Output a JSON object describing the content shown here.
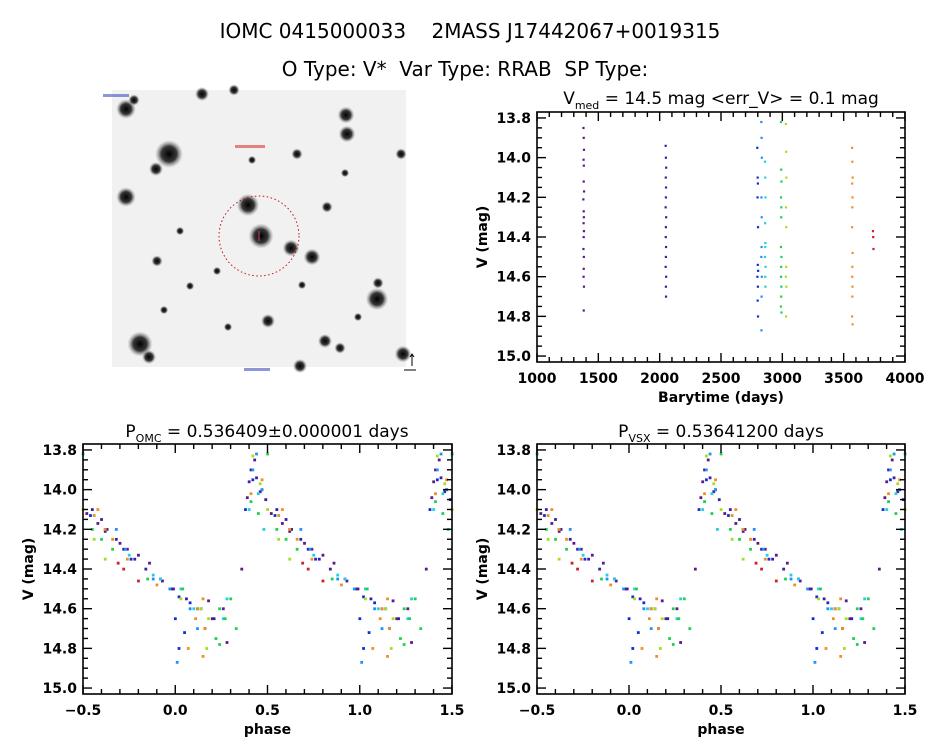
{
  "header": {
    "line1": "IOMC 0415000033    2MASS J17442067+0019315",
    "line2": "O Type: V*  Var Type: RRAB  SP Type:"
  },
  "colors": {
    "epochs": [
      "#5a1a8a",
      "#3a20a0",
      "#1030d0",
      "#1e90ff",
      "#20d0e0",
      "#20d050",
      "#a0e020",
      "#f09020",
      "#d02020"
    ],
    "axis": "#000000",
    "aperture_circle": "#cc1010"
  },
  "chart_data": [
    {
      "type": "image",
      "description_label": "",
      "marker": "aperture-circle"
    },
    {
      "type": "scatter",
      "title_main": "V",
      "title_sub": "med",
      "title_rest": " = 14.5 mag <err_V> = 0.1 mag",
      "xlabel": "Barytime (days)",
      "ylabel": "V (mag)",
      "xlim": [
        1000,
        4000
      ],
      "ylim": [
        15.03,
        13.77
      ],
      "xticks": [
        "1000",
        "1500",
        "2000",
        "2500",
        "3000",
        "3500",
        "4000"
      ],
      "yticks": [
        "13.8",
        "14.0",
        "14.2",
        "14.4",
        "14.6",
        "14.8",
        "15.0"
      ],
      "y_inverted": true
    },
    {
      "type": "scatter",
      "title_main": "P",
      "title_sub": "OMC",
      "title_rest": " = 0.536409±0.000001 days",
      "xlabel": "phase",
      "ylabel": "V (mag)",
      "xlim": [
        -0.5,
        1.5
      ],
      "ylim": [
        15.03,
        13.77
      ],
      "xticks": [
        "−0.5",
        "0.0",
        "0.5",
        "1.0",
        "1.5"
      ],
      "yticks": [
        "13.8",
        "14.0",
        "14.2",
        "14.4",
        "14.6",
        "14.8",
        "15.0"
      ],
      "y_inverted": true
    },
    {
      "type": "scatter",
      "title_main": "P",
      "title_sub": "VSX",
      "title_rest": " = 0.53641200 days",
      "xlabel": "phase",
      "ylabel": "V (mag)",
      "xlim": [
        -0.5,
        1.5
      ],
      "ylim": [
        15.03,
        13.77
      ],
      "xticks": [
        "−0.5",
        "0.0",
        "0.5",
        "1.0",
        "1.5"
      ],
      "yticks": [
        "13.8",
        "14.0",
        "14.2",
        "14.4",
        "14.6",
        "14.8",
        "15.0"
      ],
      "y_inverted": true
    }
  ],
  "observations": {
    "fields": [
      "barytime",
      "phase",
      "V",
      "epoch_color_index"
    ],
    "points": [
      [
        1378,
        0.43,
        13.85,
        0
      ],
      [
        1380,
        0.41,
        13.9,
        0
      ],
      [
        1382,
        0.4,
        13.96,
        0
      ],
      [
        1379,
        0.46,
        14.01,
        0
      ],
      [
        1381,
        0.39,
        14.04,
        0
      ],
      [
        1380,
        0.52,
        14.12,
        0
      ],
      [
        1383,
        0.58,
        14.17,
        0
      ],
      [
        1377,
        0.62,
        14.21,
        0
      ],
      [
        1380,
        0.7,
        14.27,
        0
      ],
      [
        1381,
        0.74,
        14.3,
        0
      ],
      [
        1379,
        0.8,
        14.33,
        0
      ],
      [
        1382,
        0.86,
        14.37,
        0
      ],
      [
        1380,
        0.36,
        14.4,
        0
      ],
      [
        1378,
        0.93,
        14.46,
        0
      ],
      [
        1381,
        0.99,
        14.5,
        0
      ],
      [
        1380,
        0.18,
        14.56,
        0
      ],
      [
        1379,
        0.26,
        14.6,
        0
      ],
      [
        1382,
        0.2,
        14.65,
        0
      ],
      [
        1380,
        0.28,
        14.77,
        0
      ],
      [
        2048,
        0.44,
        13.94,
        1
      ],
      [
        2050,
        0.47,
        14.0,
        1
      ],
      [
        2052,
        0.49,
        14.05,
        1
      ],
      [
        2049,
        0.55,
        14.1,
        1
      ],
      [
        2051,
        0.6,
        14.15,
        1
      ],
      [
        2050,
        0.63,
        14.2,
        1
      ],
      [
        2048,
        0.68,
        14.25,
        1
      ],
      [
        2052,
        0.72,
        14.3,
        1
      ],
      [
        2050,
        0.78,
        14.35,
        1
      ],
      [
        2049,
        0.84,
        14.4,
        1
      ],
      [
        2051,
        0.92,
        14.45,
        1
      ],
      [
        2050,
        0.98,
        14.5,
        1
      ],
      [
        2048,
        0.06,
        14.55,
        1
      ],
      [
        2052,
        0.12,
        14.6,
        1
      ],
      [
        2050,
        0.21,
        14.65,
        1
      ],
      [
        2051,
        0.16,
        14.7,
        1
      ],
      [
        2795,
        0.42,
        13.95,
        2
      ],
      [
        2798,
        0.38,
        14.1,
        2
      ],
      [
        2800,
        0.54,
        14.13,
        2
      ],
      [
        2797,
        0.62,
        14.2,
        2
      ],
      [
        2801,
        0.76,
        14.35,
        2
      ],
      [
        2799,
        0.02,
        14.54,
        2
      ],
      [
        2802,
        0.08,
        14.57,
        2
      ],
      [
        2796,
        0.14,
        14.6,
        2
      ],
      [
        2800,
        0.0,
        14.65,
        2
      ],
      [
        2798,
        0.05,
        14.72,
        2
      ],
      [
        2801,
        0.02,
        14.8,
        2
      ],
      [
        2828,
        0.44,
        13.82,
        3
      ],
      [
        2830,
        0.42,
        13.9,
        3
      ],
      [
        2832,
        0.47,
        14.0,
        3
      ],
      [
        2829,
        0.68,
        14.2,
        3
      ],
      [
        2831,
        0.73,
        14.3,
        3
      ],
      [
        2830,
        0.88,
        14.45,
        3
      ],
      [
        2828,
        0.97,
        14.5,
        3
      ],
      [
        2832,
        0.08,
        14.6,
        3
      ],
      [
        2830,
        0.12,
        14.7,
        3
      ],
      [
        2829,
        0.01,
        14.87,
        3
      ],
      [
        2858,
        0.45,
        14.02,
        4
      ],
      [
        2860,
        0.4,
        14.1,
        4
      ],
      [
        2862,
        0.48,
        14.2,
        4
      ],
      [
        2859,
        0.75,
        14.33,
        4
      ],
      [
        2861,
        0.88,
        14.43,
        4
      ],
      [
        2860,
        0.92,
        14.45,
        4
      ],
      [
        2858,
        0.03,
        14.5,
        4
      ],
      [
        2862,
        0.28,
        14.55,
        4
      ],
      [
        2860,
        0.1,
        14.6,
        4
      ],
      [
        2861,
        0.26,
        14.65,
        4
      ],
      [
        2988,
        0.5,
        13.82,
        5
      ],
      [
        2990,
        0.41,
        14.06,
        5
      ],
      [
        2992,
        0.45,
        14.12,
        5
      ],
      [
        2989,
        0.55,
        14.2,
        5
      ],
      [
        2991,
        0.6,
        14.25,
        5
      ],
      [
        2990,
        0.66,
        14.3,
        5
      ],
      [
        2988,
        0.85,
        14.45,
        5
      ],
      [
        2992,
        0.04,
        14.5,
        5
      ],
      [
        2990,
        0.3,
        14.55,
        5
      ],
      [
        2989,
        0.24,
        14.6,
        5
      ],
      [
        2991,
        0.27,
        14.65,
        5
      ],
      [
        2990,
        0.33,
        14.7,
        5
      ],
      [
        2988,
        0.22,
        14.75,
        5
      ],
      [
        2992,
        0.24,
        14.78,
        5
      ],
      [
        3028,
        0.42,
        13.83,
        6
      ],
      [
        3030,
        0.46,
        13.97,
        6
      ],
      [
        3032,
        0.5,
        14.1,
        6
      ],
      [
        3029,
        0.56,
        14.25,
        6
      ],
      [
        3031,
        0.62,
        14.35,
        6
      ],
      [
        3030,
        0.03,
        14.55,
        6
      ],
      [
        3028,
        0.14,
        14.6,
        6
      ],
      [
        3032,
        0.18,
        14.65,
        6
      ],
      [
        3030,
        0.17,
        14.8,
        6
      ],
      [
        3568,
        0.47,
        13.95,
        7
      ],
      [
        3570,
        0.41,
        14.02,
        7
      ],
      [
        3572,
        0.58,
        14.1,
        7
      ],
      [
        3569,
        0.56,
        14.13,
        7
      ],
      [
        3571,
        0.62,
        14.2,
        7
      ],
      [
        3570,
        0.66,
        14.25,
        7
      ],
      [
        3568,
        0.74,
        14.35,
        7
      ],
      [
        3572,
        0.9,
        14.48,
        7
      ],
      [
        3570,
        0.15,
        14.55,
        7
      ],
      [
        3569,
        0.12,
        14.6,
        7
      ],
      [
        3571,
        0.11,
        14.65,
        7
      ],
      [
        3570,
        0.16,
        14.7,
        7
      ],
      [
        3568,
        0.07,
        14.8,
        7
      ],
      [
        3572,
        0.15,
        14.84,
        7
      ],
      [
        3738,
        0.69,
        14.37,
        8
      ],
      [
        3740,
        0.72,
        14.4,
        8
      ],
      [
        3742,
        0.8,
        14.46,
        8
      ]
    ]
  }
}
